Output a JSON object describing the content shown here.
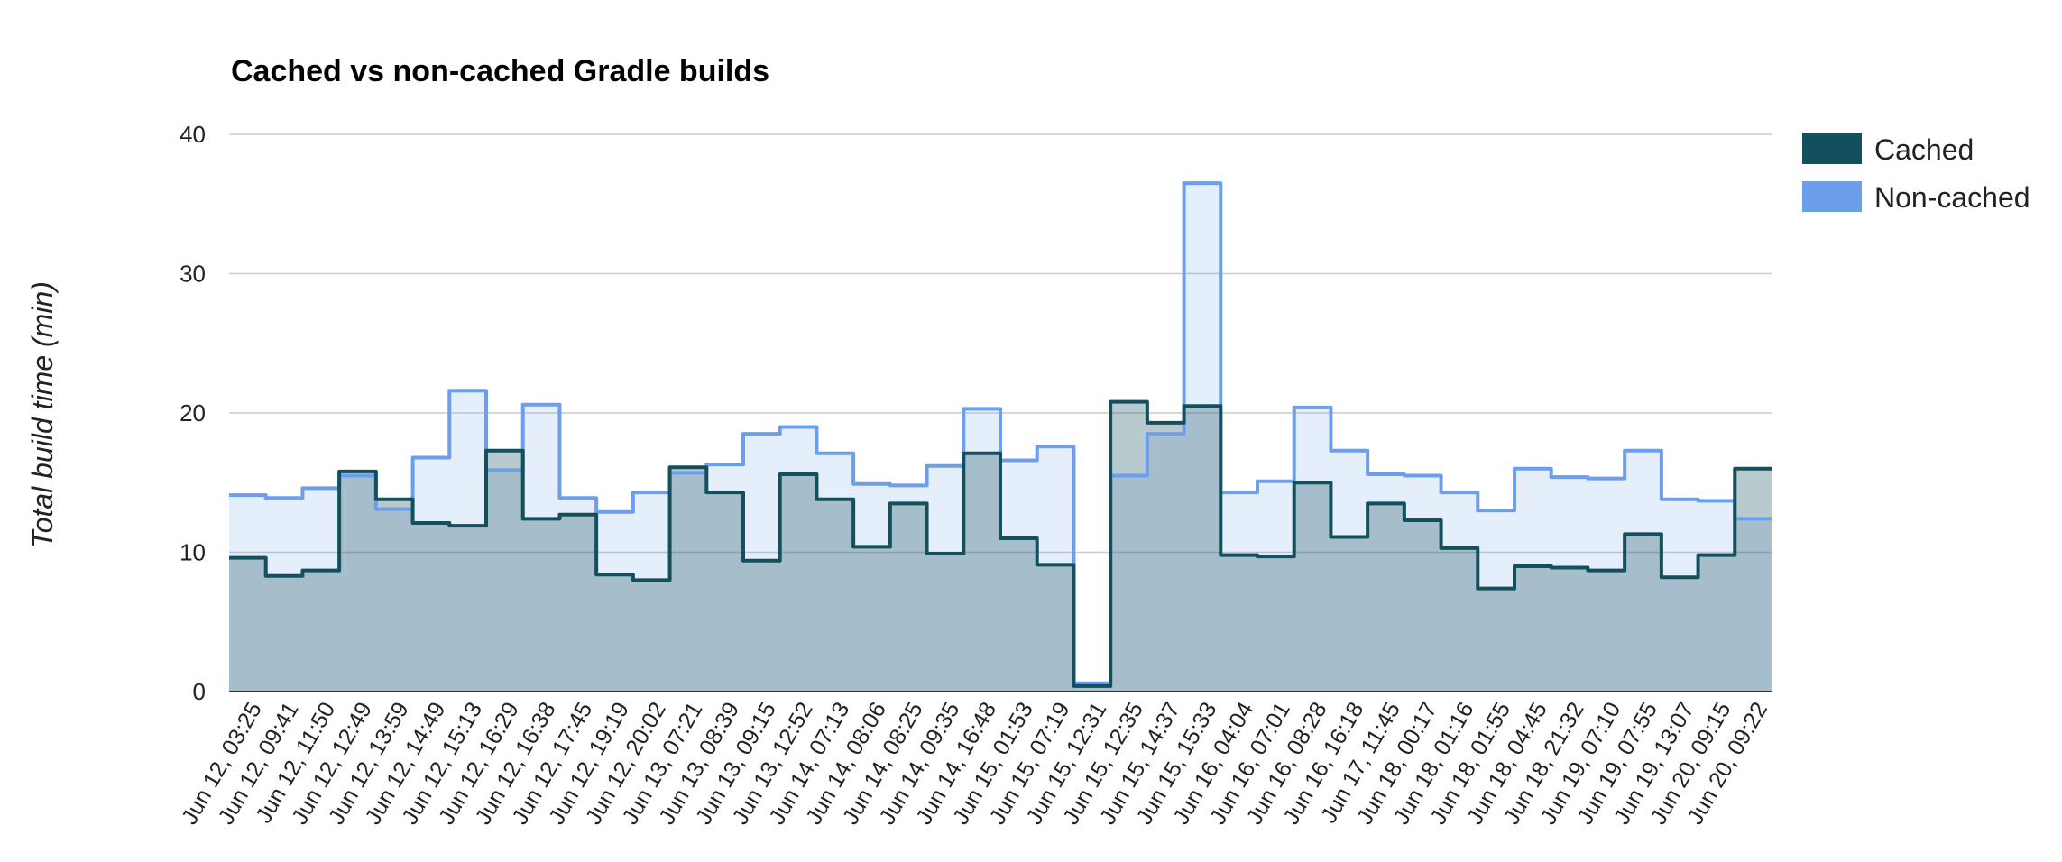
{
  "chart_data": {
    "type": "area",
    "title": "Cached vs non-cached Gradle builds",
    "xlabel": "",
    "ylabel": "Total build time (min)",
    "ylim": [
      0,
      40
    ],
    "yticks": [
      "0",
      "10",
      "20",
      "30",
      "40"
    ],
    "step": true,
    "grid": true,
    "legend_position": "right",
    "categories": [
      "Jun 12, 03:25",
      "Jun 12, 09:41",
      "Jun 12, 11:50",
      "Jun 12, 12:49",
      "Jun 12, 13:59",
      "Jun 12, 14:49",
      "Jun 12, 15:13",
      "Jun 12, 16:29",
      "Jun 12, 16:38",
      "Jun 12, 17:45",
      "Jun 12, 19:19",
      "Jun 12, 20:02",
      "Jun 13, 07:21",
      "Jun 13, 08:39",
      "Jun 13, 09:15",
      "Jun 13, 12:52",
      "Jun 14, 07:13",
      "Jun 14, 08:06",
      "Jun 14, 08:25",
      "Jun 14, 09:35",
      "Jun 14, 16:48",
      "Jun 15, 01:53",
      "Jun 15, 07:19",
      "Jun 15, 12:31",
      "Jun 15, 12:35",
      "Jun 15, 14:37",
      "Jun 15, 15:33",
      "Jun 16, 04:04",
      "Jun 16, 07:01",
      "Jun 16, 08:28",
      "Jun 16, 16:18",
      "Jun 17, 11:45",
      "Jun 18, 00:17",
      "Jun 18, 01:16",
      "Jun 18, 01:55",
      "Jun 18, 04:45",
      "Jun 18, 21:32",
      "Jun 19, 07:10",
      "Jun 19, 07:55",
      "Jun 19, 13:07",
      "Jun 20, 09:15",
      "Jun 20, 09:22"
    ],
    "series": [
      {
        "name": "Cached",
        "color": "#134f5c",
        "fill": "#134f5c",
        "values": [
          9.6,
          8.3,
          8.7,
          15.8,
          13.8,
          12.1,
          11.9,
          17.3,
          12.4,
          12.7,
          8.4,
          8.0,
          16.1,
          14.3,
          9.4,
          15.6,
          13.8,
          10.4,
          13.5,
          9.9,
          17.1,
          11.0,
          9.1,
          0.4,
          20.8,
          19.3,
          20.5,
          9.8,
          9.7,
          15.0,
          11.1,
          13.5,
          12.3,
          10.3,
          7.4,
          9.0,
          8.9,
          8.7,
          11.3,
          8.2,
          9.8,
          16.0
        ]
      },
      {
        "name": "Non-cached",
        "color": "#6d9eeb",
        "fill": "#6d9eeb",
        "values": [
          14.1,
          13.9,
          14.6,
          15.5,
          13.1,
          16.8,
          21.6,
          15.9,
          20.6,
          13.9,
          12.9,
          14.3,
          15.7,
          16.3,
          18.5,
          19.0,
          17.1,
          14.9,
          14.8,
          16.2,
          20.3,
          16.6,
          17.6,
          0.6,
          15.5,
          18.5,
          36.5,
          14.3,
          15.1,
          20.4,
          17.3,
          15.6,
          15.5,
          14.3,
          13.0,
          16.0,
          15.4,
          15.3,
          17.3,
          13.8,
          13.7,
          12.4
        ]
      }
    ]
  }
}
